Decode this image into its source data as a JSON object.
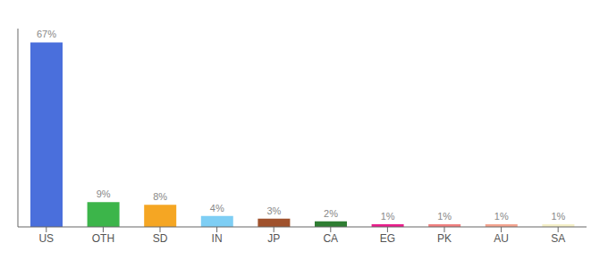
{
  "chart_data": {
    "type": "bar",
    "categories": [
      "US",
      "OTH",
      "SD",
      "IN",
      "JP",
      "CA",
      "EG",
      "PK",
      "AU",
      "SA"
    ],
    "values": [
      67,
      9,
      8,
      4,
      3,
      2,
      1,
      1,
      1,
      1
    ],
    "value_labels": [
      "67%",
      "9%",
      "8%",
      "4%",
      "3%",
      "2%",
      "1%",
      "1%",
      "1%",
      "1%"
    ],
    "colors": [
      "#4a6fdc",
      "#3cb54a",
      "#f5a623",
      "#7ecef4",
      "#a0522d",
      "#2e7d32",
      "#e91e8c",
      "#f08080",
      "#f4a490",
      "#f5f0c8"
    ],
    "ylim": [
      0,
      72
    ],
    "data_labels": true,
    "tick_labels": "x"
  }
}
